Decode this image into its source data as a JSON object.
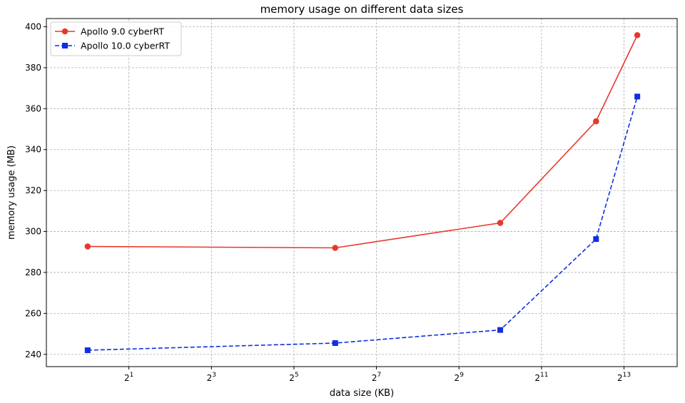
{
  "chart_data": {
    "type": "line",
    "title": "memory usage on different data sizes",
    "xlabel": "data size (KB)",
    "ylabel": "memory usage (MB)",
    "x_scale": "log2",
    "xlim": [
      0.5,
      20000
    ],
    "ylim": [
      234,
      404
    ],
    "x_ticks": [
      2,
      8,
      32,
      128,
      512,
      2048,
      8192
    ],
    "x_tick_labels": [
      {
        "base": "2",
        "exp": "1"
      },
      {
        "base": "2",
        "exp": "3"
      },
      {
        "base": "2",
        "exp": "5"
      },
      {
        "base": "2",
        "exp": "7"
      },
      {
        "base": "2",
        "exp": "9"
      },
      {
        "base": "2",
        "exp": "11"
      },
      {
        "base": "2",
        "exp": "13"
      }
    ],
    "y_ticks": [
      240,
      260,
      280,
      300,
      320,
      340,
      360,
      380,
      400
    ],
    "y_tick_labels": [
      "240",
      "260",
      "280",
      "300",
      "320",
      "340",
      "360",
      "380",
      "400"
    ],
    "grid": true,
    "legend_position": "top-left",
    "series": [
      {
        "name": "Apollo 9.0 cyberRT",
        "color": "#e8382c",
        "marker": "circle",
        "line_style": "solid",
        "x": [
          1,
          64,
          1024,
          5120,
          10240
        ],
        "y": [
          292.7,
          292.0,
          304.2,
          353.8,
          395.9
        ]
      },
      {
        "name": "Apollo 10.0 cyberRT",
        "color": "#0f2fe0",
        "marker": "square",
        "line_style": "dashed",
        "x": [
          1,
          64,
          1024,
          5120,
          10240
        ],
        "y": [
          242.0,
          245.5,
          251.9,
          296.3,
          365.9
        ]
      }
    ]
  }
}
